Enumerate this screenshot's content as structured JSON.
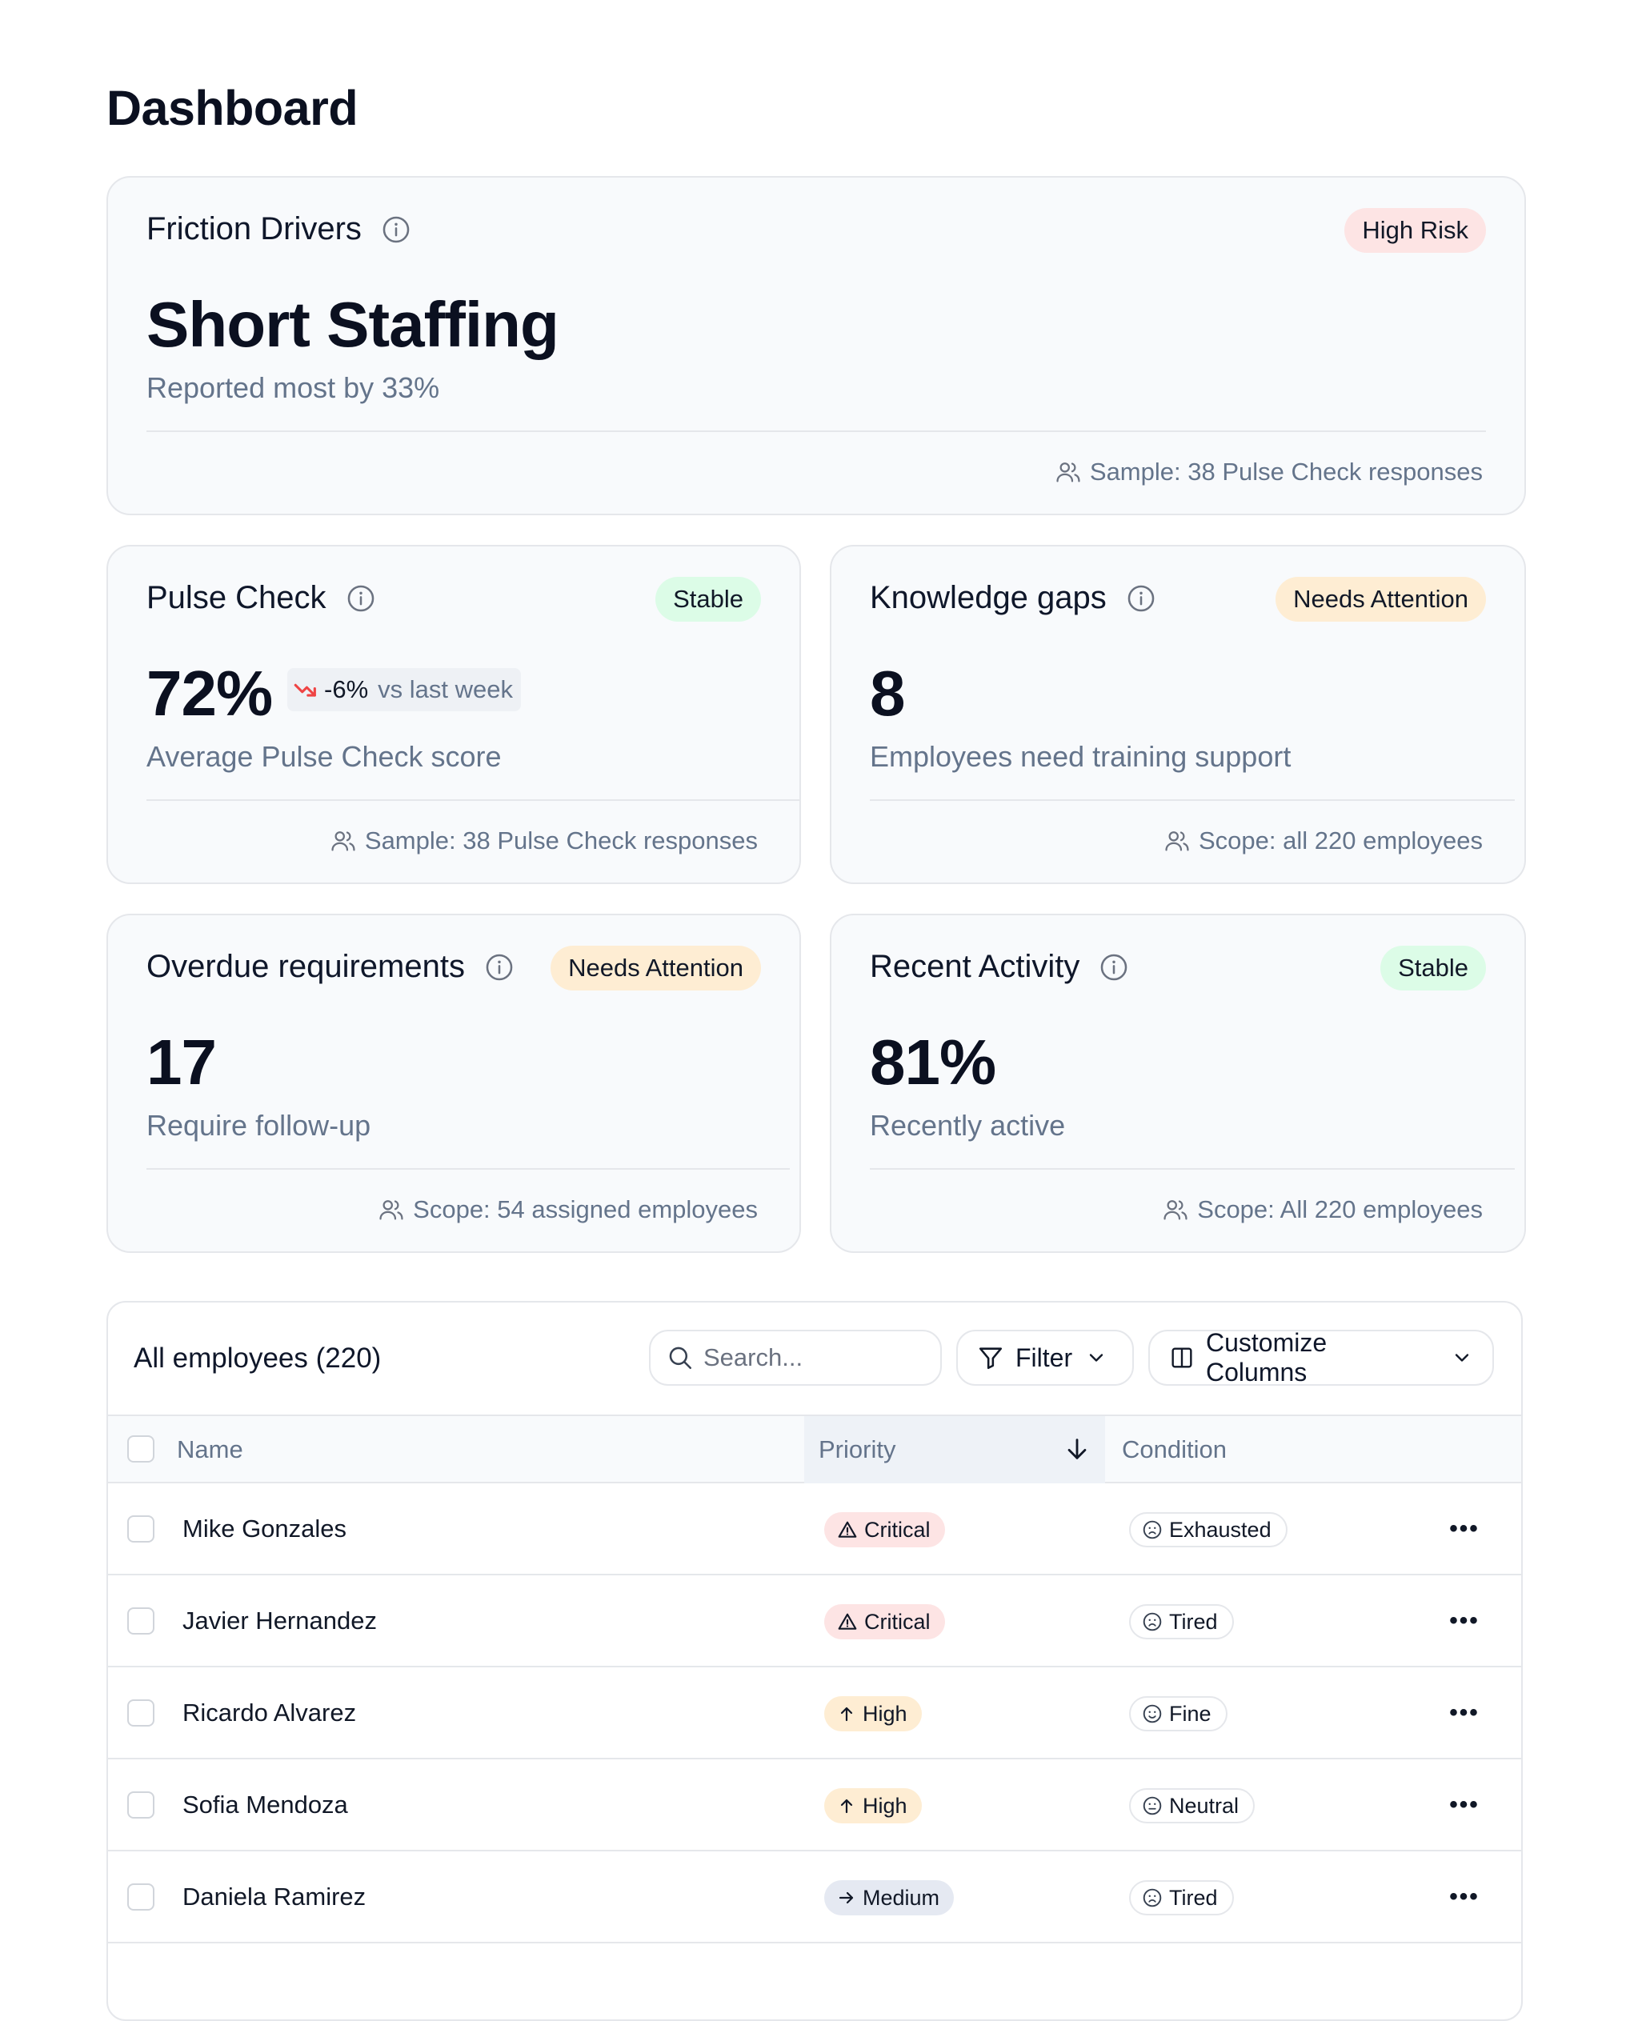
{
  "page": {
    "title": "Dashboard"
  },
  "cards": {
    "friction": {
      "title": "Friction Drivers",
      "badge": "High Risk",
      "value": "Short Staffing",
      "subtext": "Reported most by 33%",
      "footer": "Sample: 38 Pulse Check responses"
    },
    "pulse": {
      "title": "Pulse Check",
      "badge": "Stable",
      "value": "72%",
      "delta": "-6%",
      "delta_label": "vs last week",
      "subtext": "Average Pulse Check score",
      "footer": "Sample: 38 Pulse Check responses"
    },
    "knowledge": {
      "title": "Knowledge gaps",
      "badge": "Needs Attention",
      "value": "8",
      "subtext": "Employees need training support",
      "footer": "Scope: all 220 employees"
    },
    "overdue": {
      "title": "Overdue requirements",
      "badge": "Needs Attention",
      "value": "17",
      "subtext": "Require follow-up",
      "footer": "Scope: 54 assigned employees"
    },
    "activity": {
      "title": "Recent Activity",
      "badge": "Stable",
      "value": "81%",
      "subtext": "Recently active",
      "footer": "Scope: All 220 employees"
    }
  },
  "table": {
    "title": "All employees (220)",
    "search_placeholder": "Search...",
    "filter_label": "Filter",
    "columns_label": "Customize Columns",
    "headers": {
      "name": "Name",
      "priority": "Priority",
      "condition": "Condition"
    },
    "rows": [
      {
        "name": "Mike Gonzales",
        "priority": "Critical",
        "condition": "Exhausted"
      },
      {
        "name": "Javier Hernandez",
        "priority": "Critical",
        "condition": "Tired"
      },
      {
        "name": "Ricardo Alvarez",
        "priority": "High",
        "condition": "Fine"
      },
      {
        "name": "Sofia Mendoza",
        "priority": "High",
        "condition": "Neutral"
      },
      {
        "name": "Daniela Ramirez",
        "priority": "Medium",
        "condition": "Tired"
      }
    ],
    "more_label": "•••"
  },
  "colors": {
    "high_risk_bg": "#fde4e4",
    "stable_bg": "#dcfce7",
    "needs_attention_bg": "#feedd3",
    "delta_down": "#ef4444"
  },
  "icons": {
    "info": "info-icon",
    "users": "users-icon",
    "trend_down": "trend-down-icon",
    "search": "search-icon",
    "filter": "filter-icon",
    "columns": "columns-icon",
    "chevron": "chevron-down-icon",
    "sort": "arrow-down-icon",
    "critical": "alert-triangle-icon",
    "high": "arrow-up-icon",
    "medium": "arrow-right-icon",
    "condition": "face-icon",
    "more": "more-horizontal-icon"
  }
}
